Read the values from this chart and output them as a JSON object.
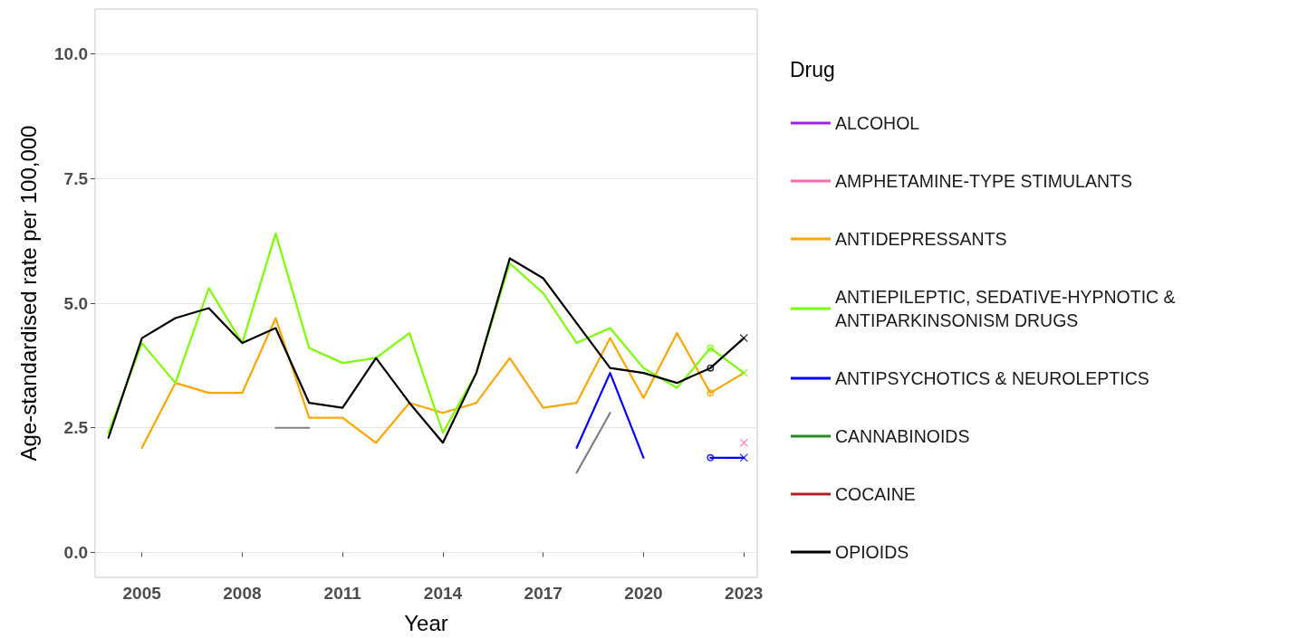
{
  "chart_data": {
    "type": "line",
    "xlabel": "Year",
    "ylabel": "Age-standardised rate per 100,000",
    "legend_title": "Drug",
    "xlim": [
      2003.6,
      2023.4
    ],
    "xticks": [
      2005,
      2008,
      2011,
      2014,
      2017,
      2020,
      2023
    ],
    "ylim": [
      -0.5,
      10.9
    ],
    "yticks": [
      {
        "value": 0,
        "label": "0.0"
      },
      2.5,
      {
        "value": 5,
        "label": "5.0"
      },
      7.5,
      {
        "value": 10,
        "label": "10.0"
      }
    ],
    "grid": "y",
    "legend": "right",
    "marker": "none",
    "series": [
      {
        "name": "ALCOHOL",
        "color": "#a020f0"
      },
      {
        "name": "AMPHETAMINE-TYPE STIMULANTS",
        "color": "#ff69b4"
      },
      {
        "name": "ANTIDEPRESSANTS",
        "color": "#ffa500",
        "x": [
          2005,
          2006,
          2007,
          2008,
          2009,
          2010,
          2011,
          2012,
          2013,
          2014,
          2015,
          2016,
          2017,
          2018,
          2019,
          2020,
          2021,
          2022,
          2023
        ],
        "values": [
          2.1,
          3.4,
          3.2,
          3.2,
          4.7,
          2.7,
          2.7,
          2.2,
          3.0,
          2.8,
          3.0,
          3.9,
          2.9,
          3.0,
          4.3,
          3.1,
          4.4,
          3.2,
          3.6
        ]
      },
      {
        "name": "ANTIEPILEPTIC, SEDATIVE-HYPNOTIC & ANTIPARKINSONISM DRUGS",
        "color": "#7cfc00",
        "x": [
          2004,
          2005,
          2006,
          2007,
          2008,
          2009,
          2010,
          2011,
          2012,
          2013,
          2014,
          2015,
          2016,
          2017,
          2018,
          2019,
          2020,
          2021,
          2022,
          2023
        ],
        "values": [
          2.4,
          4.2,
          3.4,
          5.3,
          4.2,
          6.4,
          4.1,
          3.8,
          3.9,
          4.4,
          2.4,
          3.6,
          5.8,
          5.2,
          4.2,
          4.5,
          3.7,
          3.3,
          4.1,
          3.6
        ]
      },
      {
        "name": "ANTIPSYCHOTICS & NEUROLEPTICS",
        "color": "#0000ff",
        "x": [
          2018,
          2019,
          2020,
          2021,
          2022,
          2023
        ],
        "values": [
          2.1,
          3.6,
          1.9,
          null,
          1.9,
          1.9
        ]
      },
      {
        "name": "CANNABINOIDS",
        "color": "#228b22"
      },
      {
        "name": "COCAINE",
        "color": "#b22222"
      },
      {
        "name": "OPIOIDS",
        "color": "#000000",
        "x": [
          2004,
          2005,
          2006,
          2007,
          2008,
          2009,
          2010,
          2011,
          2012,
          2013,
          2014,
          2015,
          2016,
          2017,
          2018,
          2019,
          2020,
          2021,
          2022,
          2023
        ],
        "values": [
          2.3,
          4.3,
          4.7,
          4.9,
          4.2,
          4.5,
          3.0,
          2.9,
          3.9,
          3.0,
          2.2,
          3.6,
          5.9,
          5.5,
          4.6,
          3.7,
          3.6,
          3.4,
          3.7,
          4.3
        ]
      },
      {
        "color": "#808080",
        "x": [
          2009,
          2010,
          2011,
          2012,
          2013,
          2014,
          2015,
          2016,
          2017,
          2018,
          2019
        ],
        "values": [
          2.5,
          2.5,
          null,
          null,
          null,
          null,
          null,
          null,
          null,
          1.6,
          2.8
        ]
      },
      {
        "type": "scatter",
        "marker": "circle",
        "x": [
          2022,
          2022,
          2022,
          2022
        ],
        "values": [
          3.2,
          4.1,
          1.9,
          3.7
        ],
        "colors": [
          "#ffa500",
          "#7cfc00",
          "#0000ff",
          "#000000"
        ]
      },
      {
        "type": "scatter",
        "marker": "cross",
        "x": [
          2023,
          2023,
          2023,
          2023
        ],
        "values": [
          2.2,
          3.6,
          1.9,
          4.3
        ],
        "colors": [
          "#ff69b4",
          "#7cfc00",
          "#0000ff",
          "#000000"
        ]
      }
    ]
  }
}
